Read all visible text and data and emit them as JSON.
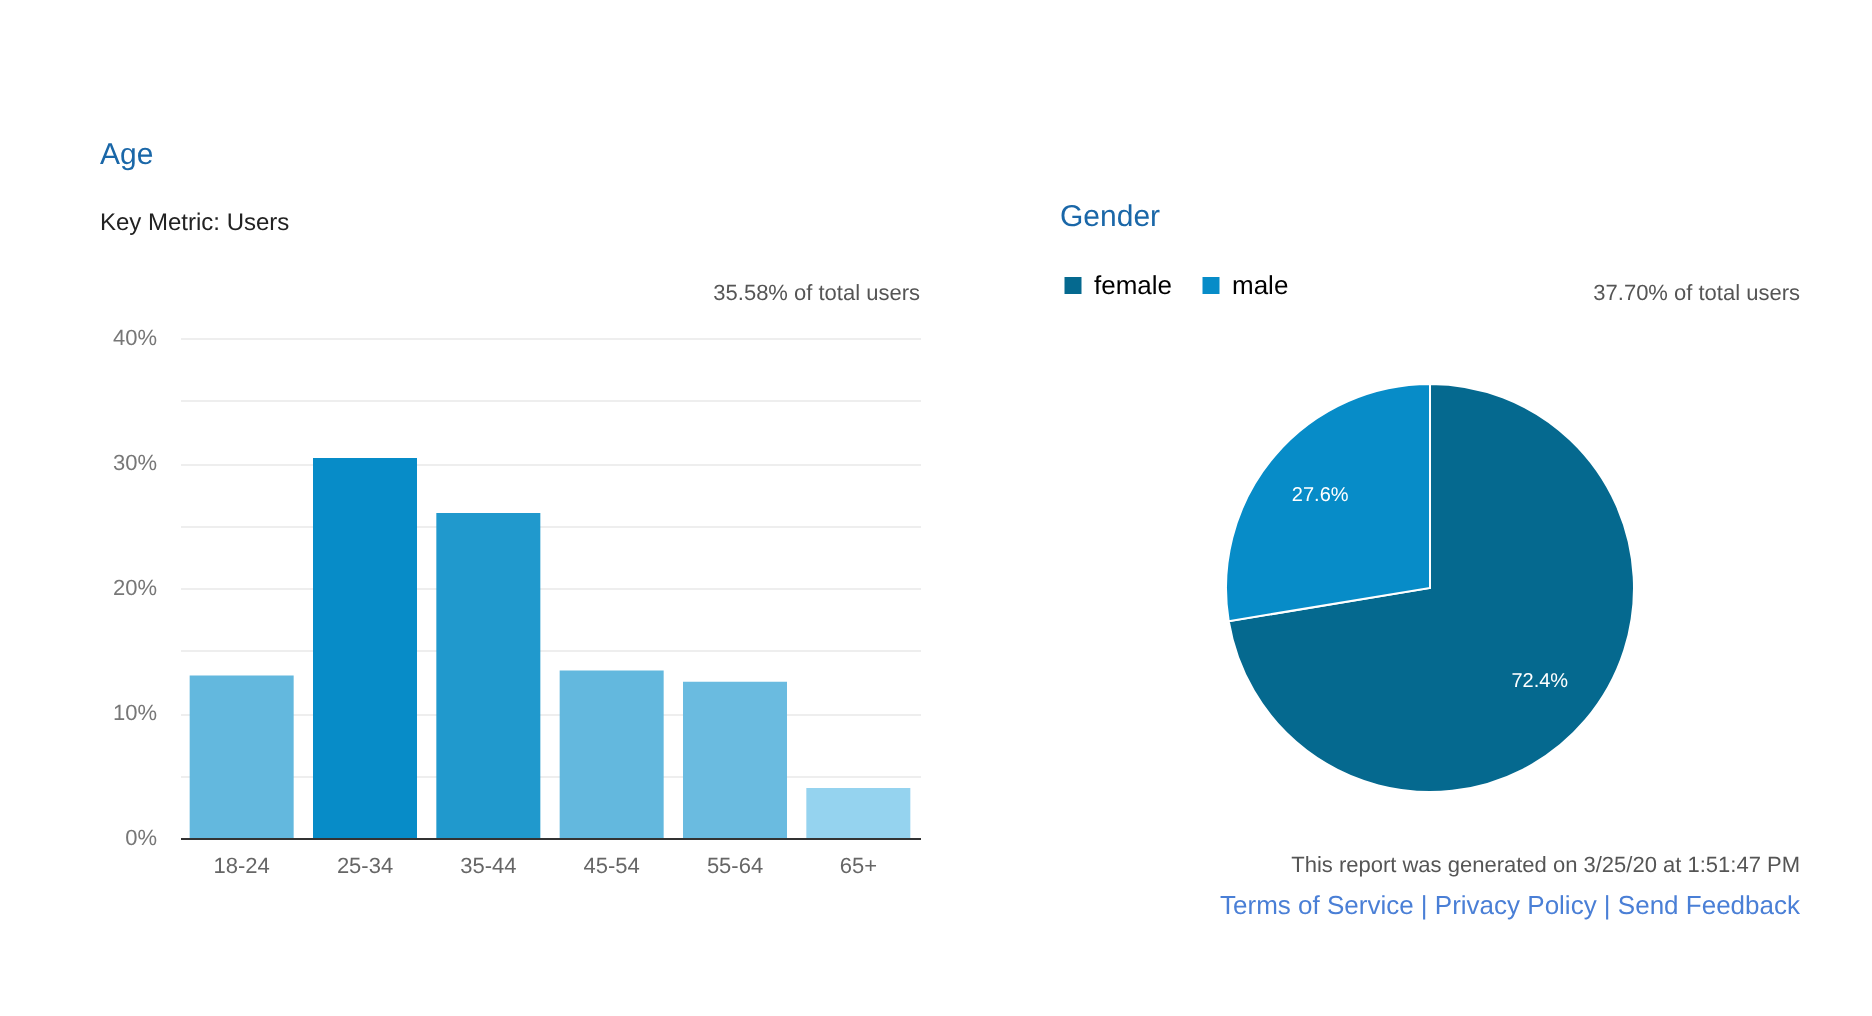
{
  "chart_data": [
    {
      "type": "bar",
      "title": "Age",
      "categories": [
        "18-24",
        "25-34",
        "35-44",
        "45-54",
        "55-64",
        "65+"
      ],
      "values": [
        13,
        30.4,
        26,
        13.4,
        12.5,
        4
      ],
      "colors": [
        "#63b8de",
        "#078cc8",
        "#2099cd",
        "#63b8de",
        "#6abbe0",
        "#95d3ef"
      ],
      "ylim": [
        0,
        40
      ],
      "yticks": [
        {
          "value": 0,
          "label": "0%"
        },
        {
          "value": 5,
          "label": null
        },
        {
          "value": 10,
          "label": "10%"
        },
        {
          "value": 15,
          "label": null
        },
        {
          "value": 20,
          "label": "20%"
        },
        {
          "value": 25,
          "label": null
        },
        {
          "value": 30,
          "label": "30%"
        },
        {
          "value": 35,
          "label": null
        },
        {
          "value": 40,
          "label": "40%"
        }
      ],
      "grid": "y",
      "annotations": [
        "35.58% of total users",
        "Key Metric: Users"
      ]
    },
    {
      "type": "pie",
      "title": "Gender",
      "categories": [
        "female",
        "male"
      ],
      "values": [
        72.4,
        27.6
      ],
      "colors": [
        "#05698f",
        "#078cc8"
      ],
      "value_labels": [
        "72.4%",
        "27.6%"
      ],
      "legend": "top",
      "annotations": [
        "37.70% of total users",
        "This report was generated on 3/25/20 at 1:51:47 PM",
        "Terms of Service | Privacy Policy | Send Feedback"
      ]
    }
  ]
}
